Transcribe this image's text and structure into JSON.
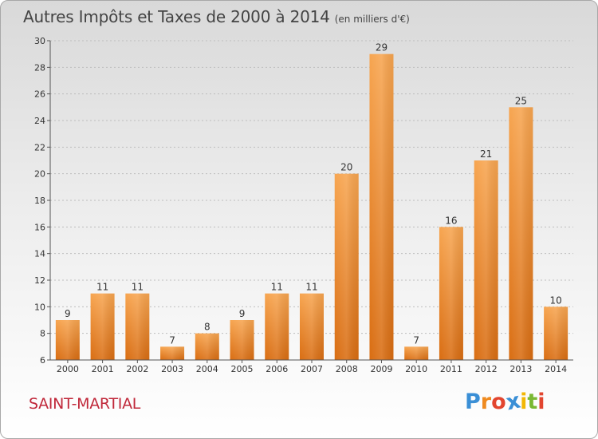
{
  "title": "Autres Impôts et Taxes de 2000 à 2014",
  "unit_note": "(en milliers d'€)",
  "commune": "SAINT-MARTIAL",
  "logo": {
    "text": "Proxiti",
    "letters": [
      "P",
      "r",
      "o",
      "x",
      "i",
      "t",
      "i"
    ],
    "colors": [
      "#3a8fd6",
      "#ef8a1f",
      "#e2452f",
      "#3a8fd6",
      "#f2b705",
      "#7ab833",
      "#e2452f"
    ]
  },
  "colors": {
    "bar_top": "#f5a04a",
    "bar_bottom": "#d96d12",
    "axis": "#555555",
    "grid": "#bdbdbd",
    "commune": "#c0283a"
  },
  "chart_data": {
    "type": "bar",
    "categories": [
      "2000",
      "2001",
      "2002",
      "2003",
      "2004",
      "2005",
      "2006",
      "2007",
      "2008",
      "2009",
      "2010",
      "2011",
      "2012",
      "2013",
      "2014"
    ],
    "values": [
      9,
      11,
      11,
      7,
      8,
      9,
      11,
      11,
      20,
      29,
      7,
      16,
      21,
      25,
      10
    ],
    "ylim": [
      6,
      30
    ],
    "yticks": [
      6,
      8,
      10,
      12,
      14,
      16,
      18,
      20,
      22,
      24,
      26,
      28,
      30
    ],
    "grid": true,
    "xlabel": "",
    "ylabel": ""
  }
}
